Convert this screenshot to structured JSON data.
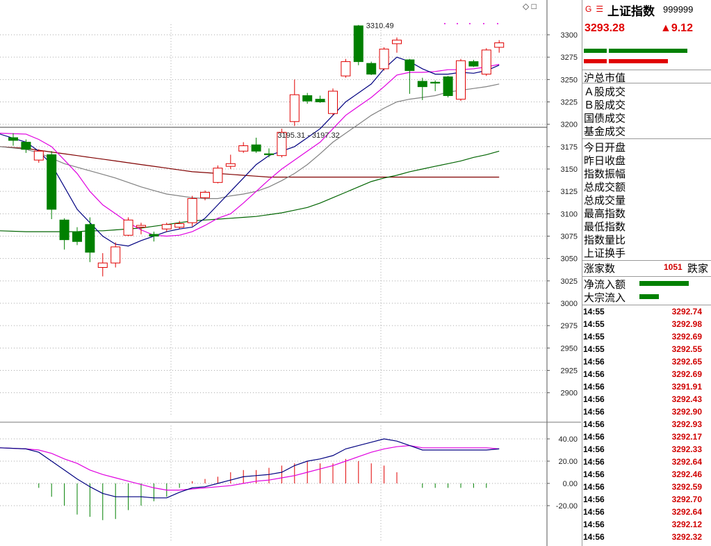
{
  "header": {
    "g_icon": "G",
    "menu_icon": "☰",
    "name": "上证指数",
    "code": "999999",
    "price": "3293.28",
    "change": "▲9.12"
  },
  "chart_controls": {
    "diamond_icon": "◇",
    "square_icon": "□"
  },
  "panel_labels": [
    "沪总市值",
    "Ａ股成交",
    "Ｂ股成交",
    "国债成交",
    "基金成交",
    "今日开盘",
    "昨日收盘",
    "指数振幅",
    "总成交额",
    "总成交量",
    "最高指数",
    "最低指数",
    "指数量比",
    "上证换手",
    "涨家数",
    "净流入额",
    "大宗流入"
  ],
  "updown": {
    "count": "1051",
    "label": "跌家"
  },
  "ticks": [
    {
      "time": "14:55",
      "price": "3292.74"
    },
    {
      "time": "14:55",
      "price": "3292.98"
    },
    {
      "time": "14:55",
      "price": "3292.69"
    },
    {
      "time": "14:55",
      "price": "3292.55"
    },
    {
      "time": "14:56",
      "price": "3292.65"
    },
    {
      "time": "14:56",
      "price": "3292.69"
    },
    {
      "time": "14:56",
      "price": "3291.91"
    },
    {
      "time": "14:56",
      "price": "3292.43"
    },
    {
      "time": "14:56",
      "price": "3292.90"
    },
    {
      "time": "14:56",
      "price": "3292.93"
    },
    {
      "time": "14:56",
      "price": "3292.17"
    },
    {
      "time": "14:56",
      "price": "3292.33"
    },
    {
      "time": "14:56",
      "price": "3292.64"
    },
    {
      "time": "14:56",
      "price": "3292.46"
    },
    {
      "time": "14:56",
      "price": "3292.59"
    },
    {
      "time": "14:56",
      "price": "3292.70"
    },
    {
      "time": "14:56",
      "price": "3292.64"
    },
    {
      "time": "14:56",
      "price": "3292.12"
    },
    {
      "time": "14:56",
      "price": "3292.32"
    }
  ],
  "colors": {
    "up": "#e00000",
    "down": "#008000",
    "ma5": "#000080",
    "ma10": "#e000e0",
    "ma20": "#808080",
    "ma60": "#006400",
    "ma120": "#800000",
    "grid": "#aaaaaa"
  },
  "chart_data": [
    {
      "type": "candlestick",
      "ylim": [
        2875,
        3320
      ],
      "yticks": [
        3300,
        3275,
        3250,
        3225,
        3200,
        3175,
        3150,
        3125,
        3100,
        3075,
        3050,
        3025,
        3000,
        2975,
        2950,
        2925,
        2900
      ],
      "candles": [
        {
          "o": 3185,
          "h": 3190,
          "c": 3182,
          "l": 3176
        },
        {
          "o": 3180,
          "h": 3183,
          "c": 3172,
          "l": 3168
        },
        {
          "o": 3160,
          "h": 3172,
          "c": 3170,
          "l": 3157
        },
        {
          "o": 3166,
          "h": 3170,
          "c": 3105,
          "l": 3094
        },
        {
          "o": 3093,
          "h": 3095,
          "c": 3071,
          "l": 3060
        },
        {
          "o": 3080,
          "h": 3085,
          "c": 3069,
          "l": 3065
        },
        {
          "o": 3088,
          "h": 3096,
          "c": 3057,
          "l": 3046
        },
        {
          "o": 3040,
          "h": 3056,
          "c": 3045,
          "l": 3030
        },
        {
          "o": 3045,
          "h": 3068,
          "c": 3063,
          "l": 3040
        },
        {
          "o": 3076,
          "h": 3096,
          "c": 3093,
          "l": 3075
        },
        {
          "o": 3085,
          "h": 3090,
          "c": 3087,
          "l": 3077
        },
        {
          "o": 3077,
          "h": 3080,
          "c": 3075,
          "l": 3069
        },
        {
          "o": 3083,
          "h": 3090,
          "c": 3088,
          "l": 3080
        },
        {
          "o": 3085,
          "h": 3092,
          "c": 3089,
          "l": 3083
        },
        {
          "o": 3090,
          "h": 3120,
          "c": 3117,
          "l": 3086
        },
        {
          "o": 3118,
          "h": 3126,
          "c": 3124,
          "l": 3115
        },
        {
          "o": 3135,
          "h": 3154,
          "c": 3151,
          "l": 3134
        },
        {
          "o": 3153,
          "h": 3166,
          "c": 3156,
          "l": 3150
        },
        {
          "o": 3170,
          "h": 3180,
          "c": 3176,
          "l": 3168
        },
        {
          "o": 3177,
          "h": 3185,
          "c": 3170,
          "l": 3168
        },
        {
          "o": 3167,
          "h": 3173,
          "c": 3166,
          "l": 3163
        },
        {
          "o": 3165,
          "h": 3195,
          "c": 3191,
          "l": 3163
        },
        {
          "o": 3203,
          "h": 3250,
          "c": 3233,
          "l": 3198
        },
        {
          "o": 3232,
          "h": 3235,
          "c": 3226,
          "l": 3223
        },
        {
          "o": 3228,
          "h": 3232,
          "c": 3225,
          "l": 3224
        },
        {
          "o": 3212,
          "h": 3240,
          "c": 3237,
          "l": 3210
        },
        {
          "o": 3254,
          "h": 3273,
          "c": 3270,
          "l": 3252
        },
        {
          "o": 3310,
          "h": 3311,
          "c": 3270,
          "l": 3266
        },
        {
          "o": 3268,
          "h": 3270,
          "c": 3256,
          "l": 3255
        },
        {
          "o": 3262,
          "h": 3286,
          "c": 3284,
          "l": 3260
        },
        {
          "o": 3290,
          "h": 3297,
          "c": 3294,
          "l": 3280
        },
        {
          "o": 3272,
          "h": 3273,
          "c": 3260,
          "l": 3234
        },
        {
          "o": 3248,
          "h": 3252,
          "c": 3242,
          "l": 3227
        },
        {
          "o": 3247,
          "h": 3249,
          "c": 3246,
          "l": 3237
        },
        {
          "o": 3253,
          "h": 3254,
          "c": 3232,
          "l": 3230
        },
        {
          "o": 3228,
          "h": 3273,
          "c": 3271,
          "l": 3226
        },
        {
          "o": 3270,
          "h": 3272,
          "c": 3265,
          "l": 3264
        },
        {
          "o": 3256,
          "h": 3285,
          "c": 3283,
          "l": 3254
        },
        {
          "o": 3286,
          "h": 3294,
          "c": 3291,
          "l": 3280
        }
      ],
      "ma5": [
        3189,
        3180,
        3170,
        3155,
        3130,
        3105,
        3090,
        3075,
        3066,
        3064,
        3070,
        3075,
        3080,
        3083,
        3085,
        3095,
        3110,
        3125,
        3140,
        3155,
        3165,
        3170,
        3175,
        3185,
        3195,
        3210,
        3225,
        3235,
        3245,
        3262,
        3275,
        3270,
        3262,
        3256,
        3256,
        3258,
        3257,
        3260,
        3266
      ],
      "ma10": [
        3190,
        3189,
        3183,
        3175,
        3160,
        3145,
        3125,
        3110,
        3100,
        3090,
        3082,
        3076,
        3075,
        3076,
        3080,
        3087,
        3095,
        3100,
        3112,
        3125,
        3138,
        3150,
        3160,
        3170,
        3180,
        3195,
        3210,
        3220,
        3230,
        3242,
        3255,
        3258,
        3258,
        3259,
        3261,
        3261,
        3262,
        3264,
        3267
      ],
      "ma20": [
        3175,
        3172,
        3168,
        3162,
        3156,
        3152,
        3148,
        3144,
        3140,
        3135,
        3130,
        3126,
        3122,
        3120,
        3118,
        3117,
        3117,
        3120,
        3122,
        3125,
        3130,
        3137,
        3145,
        3155,
        3167,
        3180,
        3190,
        3200,
        3210,
        3218,
        3225,
        3228,
        3230,
        3232,
        3236,
        3238,
        3240,
        3242,
        3245
      ],
      "ma60": [
        3081,
        3080,
        3080,
        3080,
        3080,
        3080,
        3081,
        3081,
        3082,
        3083,
        3084,
        3086,
        3088,
        3090,
        3092,
        3093,
        3094,
        3095,
        3096,
        3097,
        3099,
        3101,
        3104,
        3107,
        3112,
        3118,
        3124,
        3130,
        3136,
        3140,
        3143,
        3147,
        3150,
        3153,
        3156,
        3159,
        3163,
        3166,
        3170
      ],
      "ma120": [
        3175,
        3173,
        3171,
        3169,
        3167,
        3165,
        3163,
        3161,
        3159,
        3157,
        3155,
        3153,
        3151,
        3149,
        3147,
        3146,
        3145,
        3144,
        3143,
        3142,
        3141,
        3141,
        3141,
        3141,
        3141,
        3141,
        3141,
        3141,
        3141,
        3141,
        3141,
        3141,
        3141,
        3141,
        3141,
        3141,
        3141,
        3141,
        3141
      ],
      "annotations": [
        {
          "label": "3310.49",
          "x_index": 27,
          "y": 3310.49
        },
        {
          "label": "3195.31 - 3197.32",
          "x_index": 21,
          "y": 3196
        }
      ]
    },
    {
      "type": "macd",
      "ylim": [
        -40,
        45
      ],
      "yticks": [
        40.0,
        20.0,
        0.0,
        -20.0
      ],
      "dif": [
        32,
        31,
        28,
        20,
        12,
        4,
        -3,
        -9,
        -12,
        -12,
        -12,
        -13,
        -13,
        -8,
        -4,
        -3,
        0,
        3,
        6,
        7,
        8,
        10,
        16,
        20,
        22,
        25,
        31,
        34,
        37,
        40,
        38,
        34,
        30,
        30,
        30,
        30,
        30,
        30,
        31
      ],
      "dea": [
        32,
        31,
        30,
        27,
        22,
        18,
        12,
        8,
        5,
        2,
        -1,
        -4,
        -6,
        -6,
        -5,
        -4,
        -3,
        -2,
        0,
        2,
        3,
        5,
        7,
        10,
        13,
        16,
        20,
        24,
        28,
        31,
        33,
        34,
        32,
        32,
        32,
        32,
        32,
        32,
        31
      ],
      "macd": [
        0,
        0,
        -4,
        -12,
        -20,
        -28,
        -30,
        -33,
        -32,
        -24,
        -20,
        -16,
        -12,
        -4,
        2,
        4,
        6,
        10,
        12,
        12,
        14,
        16,
        18,
        20,
        18,
        18,
        22,
        20,
        18,
        16,
        10,
        0,
        -4,
        -4,
        -4,
        -4,
        -4,
        -4,
        0
      ]
    }
  ]
}
